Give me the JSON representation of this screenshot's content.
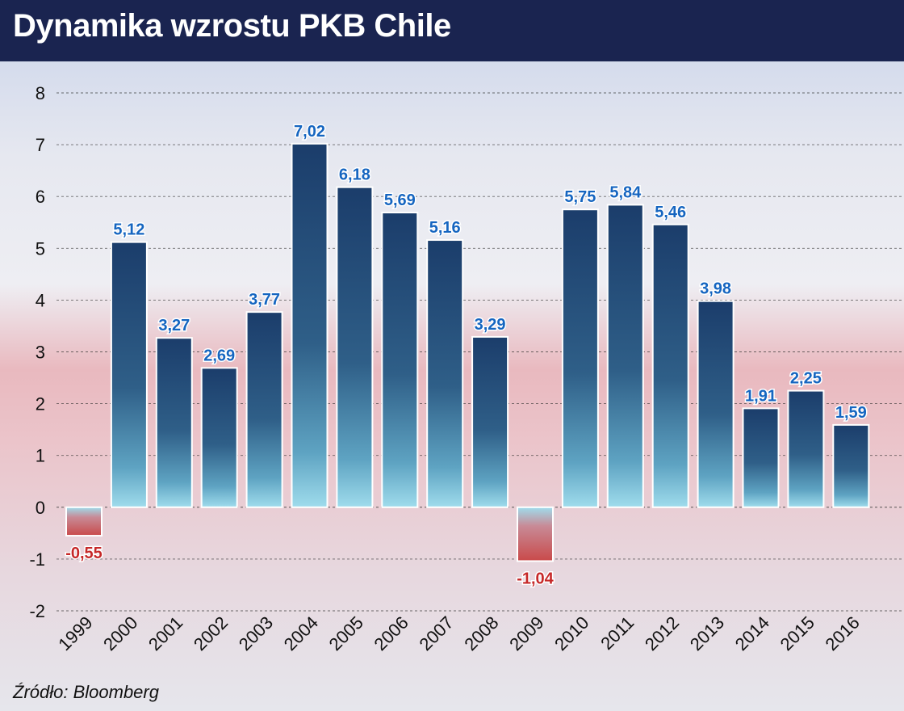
{
  "title": "Dynamika wzrostu PKB Chile",
  "source": "Źródło: Bloomberg",
  "colors": {
    "header_bg": "#1a2450",
    "positive_bar_top": "#1b3d6b",
    "positive_bar_bottom": "#8fd3e6",
    "negative_bar_bottom": "#c94a4a",
    "positive_label": "#1565c0",
    "negative_label": "#c62828"
  },
  "chart_data": {
    "type": "bar",
    "title": "Dynamika wzrostu PKB Chile",
    "xlabel": "",
    "ylabel": "",
    "ylim": [
      -2,
      8
    ],
    "yticks": [
      "-2",
      "-1",
      "0",
      "1",
      "2",
      "3",
      "4",
      "5",
      "6",
      "7",
      "8"
    ],
    "grid": "horizontal dashed",
    "legend": "none",
    "categories": [
      "1999",
      "2000",
      "2001",
      "2002",
      "2003",
      "2004",
      "2005",
      "2006",
      "2007",
      "2008",
      "2009",
      "2010",
      "2011",
      "2012",
      "2013",
      "2014",
      "2015",
      "2016"
    ],
    "values": [
      -0.55,
      5.12,
      3.27,
      2.69,
      3.77,
      7.02,
      6.18,
      5.69,
      5.16,
      3.29,
      -1.04,
      5.75,
      5.84,
      5.46,
      3.98,
      1.91,
      2.25,
      1.59
    ],
    "value_labels": [
      "-0,55",
      "5,12",
      "3,27",
      "2,69",
      "3,77",
      "7,02",
      "6,18",
      "5,69",
      "5,16",
      "3,29",
      "-1,04",
      "5,75",
      "5,84",
      "5,46",
      "3,98",
      "1,91",
      "2,25",
      "1,59"
    ]
  }
}
